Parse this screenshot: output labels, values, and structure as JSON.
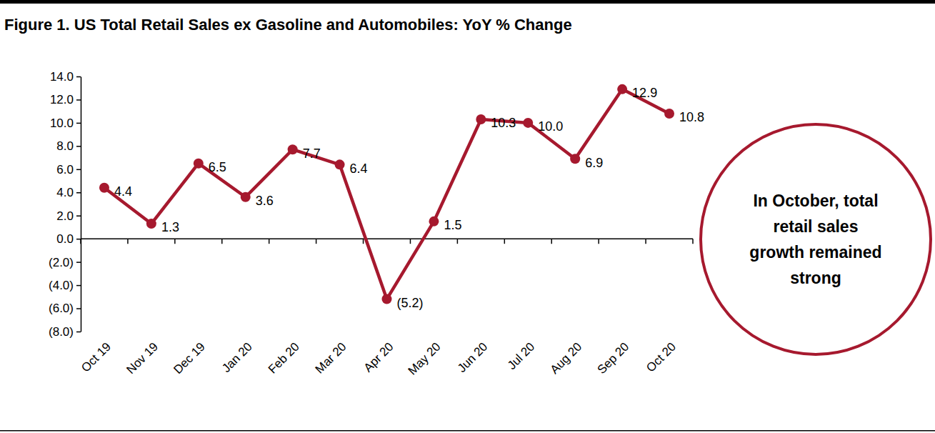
{
  "chart_data": {
    "type": "line",
    "title": "Figure 1. US Total Retail Sales ex Gasoline and Automobiles: YoY % Change",
    "categories": [
      "Oct 19",
      "Nov 19",
      "Dec 19",
      "Jan 20",
      "Feb 20",
      "Mar 20",
      "Apr 20",
      "May 20",
      "Jun 20",
      "Jul 20",
      "Aug 20",
      "Sep 20",
      "Oct 20"
    ],
    "values": [
      4.4,
      1.3,
      6.5,
      3.6,
      7.7,
      6.4,
      -5.2,
      1.5,
      10.3,
      10.0,
      6.9,
      12.9,
      10.8
    ],
    "value_labels": [
      "4.4",
      "1.3",
      "6.5",
      "3.6",
      "7.7",
      "6.4",
      "(5.2)",
      "1.5",
      "10.3",
      "10.0",
      "6.9",
      "12.9",
      "10.8"
    ],
    "color": "#a6192e",
    "marker": "circle",
    "data_labels": true,
    "grid": false,
    "ylim": [
      -8,
      14
    ],
    "yticks": [
      {
        "value": -8,
        "label": "(8.0)"
      },
      {
        "value": -6,
        "label": "(6.0)"
      },
      {
        "value": -4,
        "label": "(4.0)"
      },
      {
        "value": -2,
        "label": "(2.0)"
      },
      {
        "value": 0,
        "label": "0.0"
      },
      {
        "value": 2,
        "label": "2.0"
      },
      {
        "value": 4,
        "label": "4.0"
      },
      {
        "value": 6,
        "label": "6.0"
      },
      {
        "value": 8,
        "label": "8.0"
      },
      {
        "value": 10,
        "label": "10.0"
      },
      {
        "value": 12,
        "label": "12.0"
      },
      {
        "value": 14,
        "label": "14.0"
      }
    ],
    "annotation": [
      "In October, total",
      "retail sales",
      "growth remained",
      "strong"
    ]
  }
}
